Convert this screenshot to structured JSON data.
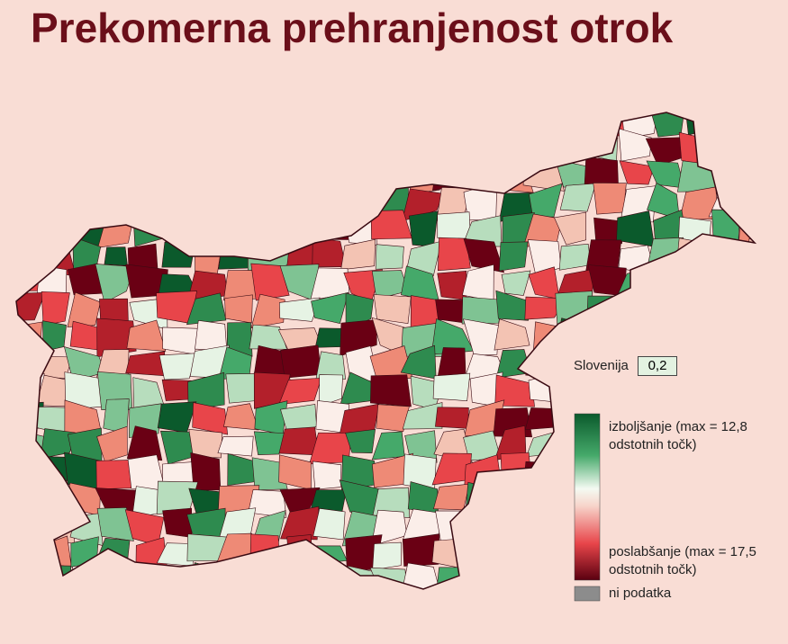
{
  "title": "Prekomerna prehranjenost otrok",
  "national": {
    "label": "Slovenija",
    "value": "0,2"
  },
  "legend": {
    "improvement": "izboljšanje (max = 12,8 odstotnih točk)",
    "worsening": "poslabšanje (max = 17,5 odstotnih točk)",
    "no_data": "ni podatka"
  }
}
